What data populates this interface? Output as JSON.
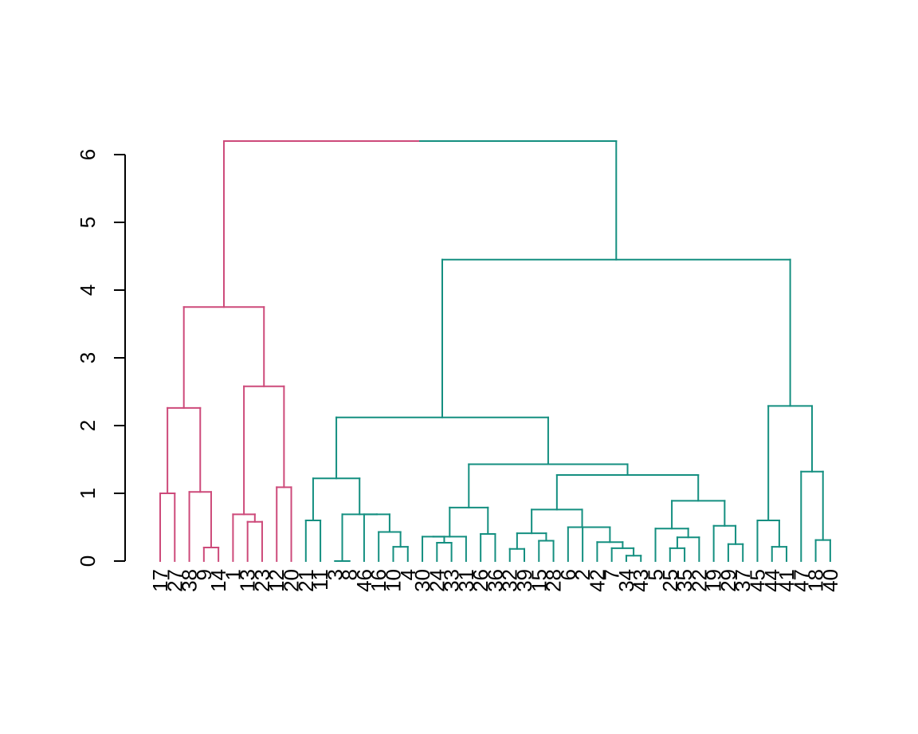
{
  "chart_data": {
    "type": "dendrogram",
    "title": "",
    "xlabel": "",
    "ylabel": "",
    "ylim": [
      0,
      6
    ],
    "y_ticks": [
      0,
      1,
      2,
      3,
      4,
      5,
      6
    ],
    "y_tick_labels": [
      "0",
      "1",
      "2",
      "3",
      "4",
      "5",
      "6"
    ],
    "leaf_order": [
      17,
      27,
      38,
      9,
      14,
      1,
      13,
      23,
      12,
      20,
      21,
      11,
      3,
      8,
      46,
      16,
      10,
      4,
      30,
      24,
      33,
      31,
      26,
      36,
      32,
      39,
      15,
      28,
      6,
      2,
      42,
      7,
      34,
      43,
      5,
      25,
      35,
      22,
      19,
      29,
      37,
      45,
      44,
      41,
      47,
      18,
      40
    ],
    "colors": {
      "cluster_1": "#CD4A7A",
      "cluster_2": "#148F80",
      "axis": "#000000"
    },
    "clusters": [
      {
        "id": "cluster_1",
        "color": "#CD4A7A",
        "leaves": [
          17,
          27,
          38,
          9,
          14,
          1,
          13,
          23,
          12,
          20
        ]
      },
      {
        "id": "cluster_2",
        "color": "#148F80",
        "leaves": [
          21,
          11,
          3,
          8,
          46,
          16,
          10,
          4,
          30,
          24,
          33,
          31,
          26,
          36,
          32,
          39,
          15,
          28,
          6,
          2,
          42,
          7,
          34,
          43,
          5,
          25,
          35,
          22,
          19,
          29,
          37,
          45,
          44,
          41,
          47,
          18,
          40
        ]
      }
    ],
    "merges": [
      {
        "a": [
          "leaf",
          9
        ],
        "b": [
          "leaf",
          14
        ],
        "height": 0.2
      },
      {
        "a": [
          "leaf",
          38
        ],
        "b": [
          "node",
          0
        ],
        "height": 1.02
      },
      {
        "a": [
          "leaf",
          17
        ],
        "b": [
          "leaf",
          27
        ],
        "height": 1.0
      },
      {
        "a": [
          "node",
          2
        ],
        "b": [
          "node",
          1
        ],
        "height": 2.26
      },
      {
        "a": [
          "leaf",
          13
        ],
        "b": [
          "leaf",
          23
        ],
        "height": 0.58
      },
      {
        "a": [
          "leaf",
          1
        ],
        "b": [
          "node",
          4
        ],
        "height": 0.69
      },
      {
        "a": [
          "leaf",
          12
        ],
        "b": [
          "leaf",
          20
        ],
        "height": 1.09
      },
      {
        "a": [
          "node",
          5
        ],
        "b": [
          "node",
          6
        ],
        "height": 2.58
      },
      {
        "a": [
          "node",
          3
        ],
        "b": [
          "node",
          7
        ],
        "height": 3.75
      },
      {
        "a": [
          "leaf",
          21
        ],
        "b": [
          "leaf",
          11
        ],
        "height": 0.6
      },
      {
        "a": [
          "leaf",
          10
        ],
        "b": [
          "leaf",
          4
        ],
        "height": 0.21
      },
      {
        "a": [
          "leaf",
          16
        ],
        "b": [
          "node",
          10
        ],
        "height": 0.43
      },
      {
        "a": [
          "leaf",
          46
        ],
        "b": [
          "node",
          11
        ],
        "height": 0.69
      },
      {
        "a": [
          "leaf",
          3
        ],
        "b": [
          "leaf",
          8
        ],
        "height": 0.0
      },
      {
        "a": [
          "node",
          13
        ],
        "b": [
          "node",
          12
        ],
        "height": 0.69
      },
      {
        "a": [
          "node",
          9
        ],
        "b": [
          "node",
          14
        ],
        "height": 1.22
      },
      {
        "a": [
          "leaf",
          24
        ],
        "b": [
          "leaf",
          33
        ],
        "height": 0.27
      },
      {
        "a": [
          "leaf",
          30
        ],
        "b": [
          "node",
          16
        ],
        "height": 0.36
      },
      {
        "a": [
          "leaf",
          31
        ],
        "b": [
          "node",
          17
        ],
        "height": 0.36
      },
      {
        "a": [
          "leaf",
          26
        ],
        "b": [
          "leaf",
          36
        ],
        "height": 0.4
      },
      {
        "a": [
          "node",
          18
        ],
        "b": [
          "node",
          19
        ],
        "height": 0.79
      },
      {
        "a": [
          "leaf",
          32
        ],
        "b": [
          "leaf",
          39
        ],
        "height": 0.18
      },
      {
        "a": [
          "leaf",
          15
        ],
        "b": [
          "leaf",
          28
        ],
        "height": 0.3
      },
      {
        "a": [
          "node",
          21
        ],
        "b": [
          "node",
          22
        ],
        "height": 0.41
      },
      {
        "a": [
          "leaf",
          34
        ],
        "b": [
          "leaf",
          43
        ],
        "height": 0.08
      },
      {
        "a": [
          "leaf",
          7
        ],
        "b": [
          "node",
          24
        ],
        "height": 0.19
      },
      {
        "a": [
          "leaf",
          42
        ],
        "b": [
          "node",
          25
        ],
        "height": 0.28
      },
      {
        "a": [
          "leaf",
          2
        ],
        "b": [
          "node",
          26
        ],
        "height": 0.5
      },
      {
        "a": [
          "leaf",
          6
        ],
        "b": [
          "node",
          27
        ],
        "height": 0.5
      },
      {
        "a": [
          "node",
          23
        ],
        "b": [
          "node",
          28
        ],
        "height": 0.76
      },
      {
        "a": [
          "leaf",
          25
        ],
        "b": [
          "leaf",
          35
        ],
        "height": 0.19
      },
      {
        "a": [
          "node",
          30
        ],
        "b": [
          "leaf",
          22
        ],
        "height": 0.35
      },
      {
        "a": [
          "leaf",
          5
        ],
        "b": [
          "node",
          31
        ],
        "height": 0.48
      },
      {
        "a": [
          "leaf",
          29
        ],
        "b": [
          "leaf",
          37
        ],
        "height": 0.25
      },
      {
        "a": [
          "leaf",
          19
        ],
        "b": [
          "node",
          33
        ],
        "height": 0.52
      },
      {
        "a": [
          "node",
          32
        ],
        "b": [
          "node",
          34
        ],
        "height": 0.89
      },
      {
        "a": [
          "node",
          29
        ],
        "b": [
          "node",
          35
        ],
        "height": 1.27
      },
      {
        "a": [
          "node",
          20
        ],
        "b": [
          "node",
          36
        ],
        "height": 1.43
      },
      {
        "a": [
          "node",
          15
        ],
        "b": [
          "node",
          37
        ],
        "height": 2.12
      },
      {
        "a": [
          "leaf",
          44
        ],
        "b": [
          "leaf",
          41
        ],
        "height": 0.21
      },
      {
        "a": [
          "leaf",
          45
        ],
        "b": [
          "node",
          39
        ],
        "height": 0.6
      },
      {
        "a": [
          "leaf",
          18
        ],
        "b": [
          "leaf",
          40
        ],
        "height": 0.31
      },
      {
        "a": [
          "leaf",
          47
        ],
        "b": [
          "node",
          41
        ],
        "height": 1.32
      },
      {
        "a": [
          "node",
          40
        ],
        "b": [
          "node",
          42
        ],
        "height": 2.29
      },
      {
        "a": [
          "node",
          38
        ],
        "b": [
          "node",
          43
        ],
        "height": 4.45
      },
      {
        "a": [
          "node",
          8
        ],
        "b": [
          "node",
          44
        ],
        "height": 6.2
      }
    ]
  }
}
